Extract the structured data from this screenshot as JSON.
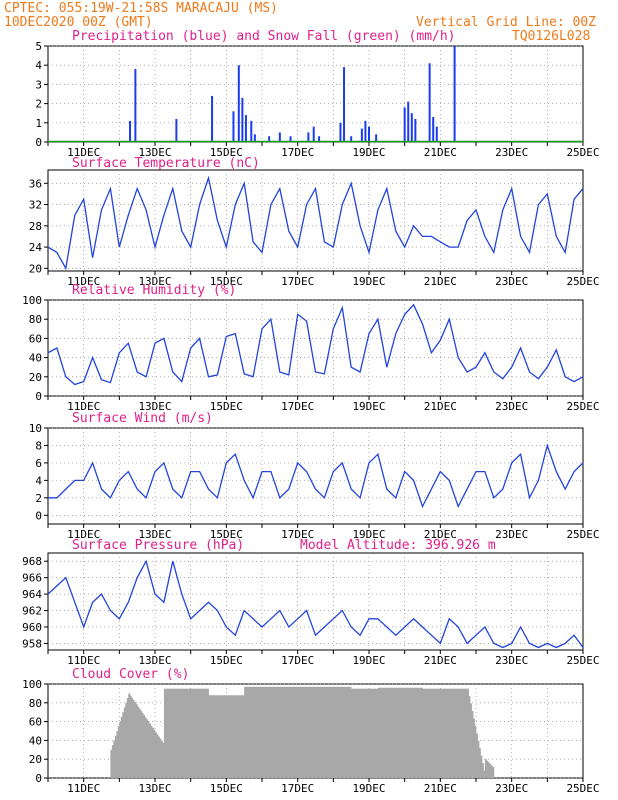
{
  "header": {
    "line1": "CPTEC:   055:19W-21:58S  MARACAJU (MS)",
    "line2": "10DEC2020 00Z (GMT)",
    "grid_note": "Vertical Grid Line: 00Z",
    "code": "TQ0126L028"
  },
  "x_ticks": [
    "11DEC",
    "13DEC",
    "15DEC",
    "17DEC",
    "19DEC",
    "21DEC",
    "23DEC",
    "25DEC"
  ],
  "colors": {
    "line": "#2244dd",
    "precip": "#1a3cf0",
    "snow": "#10a010",
    "cloud": "#a8a8a8",
    "title": "#e0208a",
    "header": "#f07a1a",
    "grid": "#808080"
  },
  "chart_data": [
    {
      "id": "precip",
      "type": "bar",
      "title": "Precipitation (blue) and Snow Fall (green) (mm/h)",
      "ylim": [
        0,
        5
      ],
      "yticks": [
        "0",
        "1",
        "2",
        "3",
        "4",
        "5"
      ],
      "x_unit": "days since 10DEC2020 00Z",
      "series": [
        {
          "name": "Precipitation",
          "values": [
            [
              2.3,
              1.1
            ],
            [
              2.45,
              3.8
            ],
            [
              3.6,
              1.2
            ],
            [
              4.6,
              2.4
            ],
            [
              5.2,
              1.6
            ],
            [
              5.35,
              4.0
            ],
            [
              5.45,
              2.3
            ],
            [
              5.55,
              1.4
            ],
            [
              5.7,
              1.1
            ],
            [
              5.8,
              0.4
            ],
            [
              6.2,
              0.3
            ],
            [
              6.5,
              0.5
            ],
            [
              6.8,
              0.3
            ],
            [
              7.3,
              0.5
            ],
            [
              7.45,
              0.8
            ],
            [
              7.6,
              0.3
            ],
            [
              8.2,
              1.0
            ],
            [
              8.3,
              3.9
            ],
            [
              8.5,
              0.3
            ],
            [
              8.8,
              0.7
            ],
            [
              8.9,
              1.1
            ],
            [
              9.0,
              0.8
            ],
            [
              9.2,
              0.4
            ],
            [
              10.0,
              1.8
            ],
            [
              10.1,
              2.1
            ],
            [
              10.2,
              1.5
            ],
            [
              10.3,
              1.2
            ],
            [
              10.7,
              4.1
            ],
            [
              10.8,
              1.3
            ],
            [
              10.9,
              0.8
            ],
            [
              11.4,
              5.0
            ]
          ]
        },
        {
          "name": "Snow Fall",
          "values": []
        }
      ]
    },
    {
      "id": "temp",
      "type": "line",
      "title": "Surface Temperature (nC)",
      "ylim": [
        19.5,
        38.5
      ],
      "yticks": [
        "20",
        "24",
        "28",
        "32",
        "36"
      ],
      "x": [
        0,
        0.25,
        0.5,
        0.75,
        1.0,
        1.25,
        1.5,
        1.75,
        2.0,
        2.25,
        2.5,
        2.75,
        3.0,
        3.25,
        3.5,
        3.75,
        4.0,
        4.25,
        4.5,
        4.75,
        5.0,
        5.25,
        5.5,
        5.75,
        6.0,
        6.25,
        6.5,
        6.75,
        7.0,
        7.25,
        7.5,
        7.75,
        8.0,
        8.25,
        8.5,
        8.75,
        9.0,
        9.25,
        9.5,
        9.75,
        10.0,
        10.25,
        10.5,
        10.75,
        11.0,
        11.25,
        11.5,
        11.75,
        12.0,
        12.25,
        12.5,
        12.75,
        13.0,
        13.25,
        13.5,
        13.75,
        14.0,
        14.25,
        14.5,
        14.75,
        15.0
      ],
      "values": [
        24,
        23,
        20,
        30,
        33,
        22,
        31,
        35,
        24,
        30,
        35,
        31,
        24,
        30,
        35,
        27,
        24,
        32,
        37,
        29,
        24,
        32,
        36,
        25,
        23,
        32,
        35,
        27,
        24,
        32,
        35,
        25,
        24,
        32,
        36,
        28,
        23,
        31,
        35,
        27,
        24,
        28,
        26,
        26,
        25,
        24,
        24,
        29,
        31,
        26,
        23,
        31,
        35,
        26,
        23,
        32,
        34,
        26,
        23,
        33,
        35
      ]
    },
    {
      "id": "rh",
      "type": "line",
      "title": "Relative Humidity (%)",
      "ylim": [
        0,
        100
      ],
      "yticks": [
        "0",
        "20",
        "40",
        "60",
        "80",
        "100"
      ],
      "x": [
        0,
        0.25,
        0.5,
        0.75,
        1.0,
        1.25,
        1.5,
        1.75,
        2.0,
        2.25,
        2.5,
        2.75,
        3.0,
        3.25,
        3.5,
        3.75,
        4.0,
        4.25,
        4.5,
        4.75,
        5.0,
        5.25,
        5.5,
        5.75,
        6.0,
        6.25,
        6.5,
        6.75,
        7.0,
        7.25,
        7.5,
        7.75,
        8.0,
        8.25,
        8.5,
        8.75,
        9.0,
        9.25,
        9.5,
        9.75,
        10.0,
        10.25,
        10.5,
        10.75,
        11.0,
        11.25,
        11.5,
        11.75,
        12.0,
        12.25,
        12.5,
        12.75,
        13.0,
        13.25,
        13.5,
        13.75,
        14.0,
        14.25,
        14.5,
        14.75,
        15.0
      ],
      "values": [
        45,
        50,
        20,
        12,
        15,
        40,
        17,
        14,
        45,
        55,
        25,
        20,
        55,
        60,
        25,
        15,
        50,
        60,
        20,
        22,
        62,
        65,
        23,
        20,
        70,
        80,
        25,
        22,
        85,
        78,
        25,
        23,
        70,
        92,
        30,
        25,
        65,
        80,
        30,
        65,
        85,
        95,
        75,
        45,
        58,
        80,
        40,
        25,
        30,
        45,
        25,
        18,
        30,
        50,
        25,
        18,
        30,
        48,
        20,
        15,
        20
      ]
    },
    {
      "id": "wind",
      "type": "line",
      "title": "Surface Wind (m/s)",
      "ylim": [
        -1,
        10
      ],
      "yticks": [
        "0",
        "2",
        "4",
        "6",
        "8",
        "10"
      ],
      "x": [
        0,
        0.25,
        0.5,
        0.75,
        1.0,
        1.25,
        1.5,
        1.75,
        2.0,
        2.25,
        2.5,
        2.75,
        3.0,
        3.25,
        3.5,
        3.75,
        4.0,
        4.25,
        4.5,
        4.75,
        5.0,
        5.25,
        5.5,
        5.75,
        6.0,
        6.25,
        6.5,
        6.75,
        7.0,
        7.25,
        7.5,
        7.75,
        8.0,
        8.25,
        8.5,
        8.75,
        9.0,
        9.25,
        9.5,
        9.75,
        10.0,
        10.25,
        10.5,
        10.75,
        11.0,
        11.25,
        11.5,
        11.75,
        12.0,
        12.25,
        12.5,
        12.75,
        13.0,
        13.25,
        13.5,
        13.75,
        14.0,
        14.25,
        14.5,
        14.75,
        15.0
      ],
      "values": [
        2,
        2,
        3,
        4,
        4,
        6,
        3,
        2,
        4,
        5,
        3,
        2,
        5,
        6,
        3,
        2,
        5,
        5,
        3,
        2,
        6,
        7,
        4,
        2,
        5,
        5,
        2,
        3,
        6,
        5,
        3,
        2,
        5,
        6,
        3,
        2,
        6,
        7,
        3,
        2,
        5,
        4,
        1,
        3,
        5,
        4,
        1,
        3,
        5,
        5,
        2,
        3,
        6,
        7,
        2,
        4,
        8,
        5,
        3,
        5,
        6
      ]
    },
    {
      "id": "pres",
      "type": "line",
      "title": "Surface Pressure (hPa)",
      "annotation": "Model Altitude: 396.926 m",
      "ylim": [
        957.2,
        969
      ],
      "yticks": [
        "958",
        "960",
        "962",
        "964",
        "966",
        "968"
      ],
      "x": [
        0,
        0.25,
        0.5,
        0.75,
        1.0,
        1.25,
        1.5,
        1.75,
        2.0,
        2.25,
        2.5,
        2.75,
        3.0,
        3.25,
        3.5,
        3.75,
        4.0,
        4.25,
        4.5,
        4.75,
        5.0,
        5.25,
        5.5,
        5.75,
        6.0,
        6.25,
        6.5,
        6.75,
        7.0,
        7.25,
        7.5,
        7.75,
        8.0,
        8.25,
        8.5,
        8.75,
        9.0,
        9.25,
        9.5,
        9.75,
        10.0,
        10.25,
        10.5,
        10.75,
        11.0,
        11.25,
        11.5,
        11.75,
        12.0,
        12.25,
        12.5,
        12.75,
        13.0,
        13.25,
        13.5,
        13.75,
        14.0,
        14.25,
        14.5,
        14.75,
        15.0
      ],
      "values": [
        964,
        965,
        966,
        963,
        960,
        963,
        964,
        962,
        961,
        963,
        966,
        968,
        964,
        963,
        968,
        964,
        961,
        962,
        963,
        962,
        960,
        959,
        962,
        961,
        960,
        961,
        962,
        960,
        961,
        962,
        959,
        960,
        961,
        962,
        960,
        959,
        961,
        961,
        960,
        959,
        960,
        961,
        960,
        959,
        958,
        961,
        960,
        958,
        959,
        960,
        958,
        957.5,
        958,
        960,
        958,
        957.5,
        958,
        957.5,
        958,
        959,
        957.5
      ]
    },
    {
      "id": "cloud",
      "type": "bar",
      "title": "Cloud Cover (%)",
      "ylim": [
        0,
        100
      ],
      "yticks": [
        "0",
        "20",
        "40",
        "60",
        "80",
        "100"
      ],
      "segments": [
        [
          1.75,
          2.25,
          "30→90"
        ],
        [
          2.25,
          3.25,
          "90→35"
        ],
        [
          3.25,
          4.5,
          95
        ],
        [
          4.5,
          5.5,
          88
        ],
        [
          5.5,
          8.5,
          97
        ],
        [
          8.5,
          9.25,
          95
        ],
        [
          9.25,
          10.5,
          96
        ],
        [
          10.5,
          11.75,
          95
        ],
        [
          11.75,
          12.25,
          "95→0"
        ],
        [
          12.25,
          12.5,
          "20→10"
        ]
      ]
    }
  ]
}
